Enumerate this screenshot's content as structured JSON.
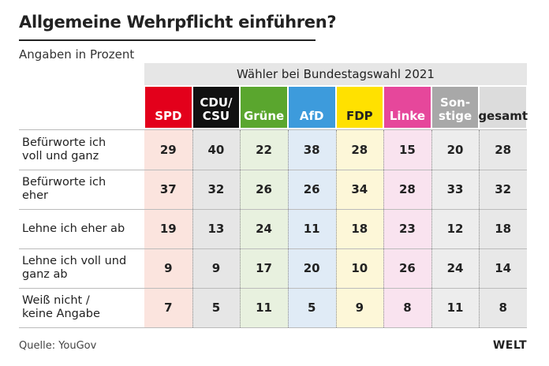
{
  "header": {
    "title": "Allgemeine Wehrpflicht einführen?",
    "subtitle": "Angaben in Prozent"
  },
  "table": {
    "group_header": "Wähler bei Bundestagswahl 2021",
    "columns": [
      {
        "label": "SPD",
        "color": "#e3001b",
        "tint": "#fbe4de",
        "text_color": "#ffffff"
      },
      {
        "label": "CDU/\nCSU",
        "color": "#111111",
        "tint": "#e6e6e6",
        "text_color": "#ffffff"
      },
      {
        "label": "Grüne",
        "color": "#5aa62e",
        "tint": "#e8f1df",
        "text_color": "#ffffff"
      },
      {
        "label": "AfD",
        "color": "#3d9bdc",
        "tint": "#e0ebf6",
        "text_color": "#ffffff"
      },
      {
        "label": "FDP",
        "color": "#ffe100",
        "tint": "#fdf7d8",
        "text_color": "#222222"
      },
      {
        "label": "Linke",
        "color": "#e6479b",
        "tint": "#f9e3ef",
        "text_color": "#ffffff"
      },
      {
        "label": "Son-\nstige",
        "color": "#a8a8a8",
        "tint": "#ededed",
        "text_color": "#ffffff"
      },
      {
        "label": "gesamt",
        "color": "#dcdcdc",
        "tint": "#e8e8e8",
        "text_color": "#222222"
      }
    ],
    "rows": [
      {
        "label": "Befürworte ich\nvoll und ganz",
        "values": [
          29,
          40,
          22,
          38,
          28,
          15,
          20,
          28
        ]
      },
      {
        "label": "Befürworte ich\neher",
        "values": [
          37,
          32,
          26,
          26,
          34,
          28,
          33,
          32
        ]
      },
      {
        "label": "Lehne ich eher ab",
        "values": [
          19,
          13,
          24,
          11,
          18,
          23,
          12,
          18
        ]
      },
      {
        "label": "Lehne ich voll und\nganz ab",
        "values": [
          9,
          9,
          17,
          20,
          10,
          26,
          24,
          14
        ]
      },
      {
        "label": "Weiß nicht /\nkeine Angabe",
        "values": [
          7,
          5,
          11,
          5,
          9,
          8,
          11,
          8
        ]
      }
    ]
  },
  "footer": {
    "source": "Quelle: YouGov",
    "brand": "WELT"
  }
}
